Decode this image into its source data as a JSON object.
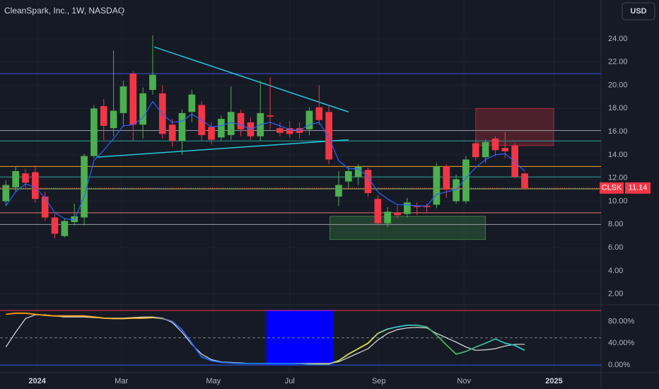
{
  "chart_data": {
    "type": "candlestick",
    "title": "CleanSpark, Inc., 1W, NASDAQ",
    "currency": "USD",
    "symbol": "CLSK",
    "last_price": 11.14,
    "up_color": "#4caf50",
    "down_color": "#f23645",
    "x": [
      0,
      1,
      2,
      3,
      4,
      5,
      6,
      7,
      8,
      9,
      10,
      11,
      12,
      13,
      14,
      15,
      16,
      17,
      18,
      19,
      20,
      21,
      22,
      23,
      24,
      25,
      26,
      27,
      28,
      29,
      30,
      31,
      32,
      33,
      34,
      35,
      36,
      37,
      38,
      39,
      40,
      41,
      42,
      43,
      44,
      45,
      46,
      47,
      48,
      49,
      50,
      51,
      52,
      53
    ],
    "open": [
      10.0,
      11.2,
      12.4,
      12.5,
      10.4,
      8.6,
      7.0,
      8.2,
      8.6,
      13.9,
      18.2,
      16.3,
      17.6,
      21.0,
      16.6,
      19.6,
      19.3,
      16.6,
      15.2,
      17.7,
      18.3,
      16.4,
      15.5,
      15.7,
      17.6,
      16.8,
      15.6,
      17.4,
      16.3,
      16.3,
      16.3,
      16.2,
      18.1,
      17.7,
      10.4,
      11.7,
      12.1,
      12.7,
      10.2,
      8.1,
      9.0,
      8.9,
      9.6,
      9.6,
      9.7,
      13.0,
      10.0,
      10.0,
      15.0,
      13.8,
      15.4,
      14.6,
      14.8,
      12.4
    ],
    "high": [
      11.8,
      13.0,
      12.8,
      13.1,
      10.8,
      8.9,
      8.5,
      9.8,
      14.1,
      18.3,
      18.8,
      23.0,
      20.4,
      21.2,
      19.8,
      24.3,
      20.0,
      17.1,
      17.9,
      19.6,
      18.6,
      16.8,
      17.4,
      19.9,
      17.9,
      17.2,
      20.4,
      20.7,
      16.8,
      16.9,
      16.8,
      18.1,
      20.0,
      18.3,
      12.6,
      13.0,
      13.2,
      12.9,
      10.5,
      9.5,
      9.6,
      10.3,
      9.9,
      9.8,
      13.3,
      13.2,
      12.3,
      13.9,
      15.3,
      15.3,
      15.6,
      16.0,
      15.0,
      12.5
    ],
    "low": [
      9.6,
      10.8,
      11.2,
      9.9,
      8.3,
      6.8,
      6.9,
      7.9,
      7.9,
      13.7,
      15.3,
      15.6,
      16.4,
      15.2,
      15.4,
      19.2,
      15.4,
      14.7,
      14.0,
      16.8,
      15.2,
      14.9,
      15.2,
      15.3,
      15.6,
      15.3,
      15.2,
      16.2,
      15.6,
      15.5,
      15.4,
      15.7,
      16.6,
      13.2,
      9.6,
      11.1,
      11.4,
      10.4,
      7.9,
      7.8,
      8.5,
      8.6,
      8.8,
      9.0,
      9.4,
      10.3,
      9.8,
      9.8,
      13.5,
      13.3,
      13.9,
      13.7,
      12.0,
      11.0
    ],
    "close": [
      11.4,
      12.6,
      11.6,
      10.2,
      8.6,
      7.2,
      8.3,
      8.7,
      13.9,
      18.0,
      16.5,
      17.8,
      19.9,
      16.6,
      19.3,
      20.9,
      15.8,
      15.2,
      17.6,
      19.2,
      15.7,
      15.3,
      17.1,
      17.7,
      16.2,
      15.6,
      17.6,
      17.3,
      15.9,
      15.8,
      15.9,
      17.8,
      17.0,
      13.6,
      11.4,
      12.6,
      13.0,
      10.7,
      8.1,
      9.1,
      8.8,
      9.9,
      9.5,
      9.5,
      13.0,
      11.0,
      11.9,
      13.6,
      13.8,
      15.1,
      14.4,
      14.3,
      12.1,
      11.14
    ],
    "ma": {
      "color": "#2962ff",
      "values": [
        9.6,
        10.8,
        11.5,
        11.2,
        10.3,
        9.0,
        8.5,
        8.4,
        10.4,
        13.5,
        14.4,
        15.4,
        16.5,
        16.6,
        17.2,
        18.6,
        17.5,
        16.8,
        16.9,
        17.5,
        17.0,
        16.4,
        16.5,
        16.8,
        16.6,
        16.2,
        16.6,
        16.8,
        16.5,
        16.2,
        16.1,
        16.6,
        16.8,
        15.5,
        13.5,
        12.8,
        12.8,
        12.1,
        10.8,
        10.2,
        9.7,
        9.7,
        9.6,
        9.6,
        10.6,
        10.8,
        11.0,
        12.0,
        12.9,
        13.6,
        14.0,
        14.1,
        13.4,
        12.6
      ]
    },
    "xlim": [
      -0.6,
      60.8
    ],
    "xticks": [
      {
        "value": 3.2,
        "label": "2024"
      },
      {
        "value": 11.8,
        "label": "Mar"
      },
      {
        "value": 21.2,
        "label": "May"
      },
      {
        "value": 29.0,
        "label": "Jul"
      },
      {
        "value": 38.1,
        "label": "Sep"
      },
      {
        "value": 46.8,
        "label": "Nov"
      },
      {
        "value": 56.0,
        "label": "2025"
      }
    ],
    "ylim": [
      1.13,
      27.35
    ],
    "yticks": [
      {
        "value": 2,
        "label": "2.00"
      },
      {
        "value": 4,
        "label": "4.00"
      },
      {
        "value": 6,
        "label": "6.00"
      },
      {
        "value": 8,
        "label": "8.00"
      },
      {
        "value": 10,
        "label": "10.00"
      },
      {
        "value": 12,
        "label": "12.00"
      },
      {
        "value": 14,
        "label": "14.00"
      },
      {
        "value": 16,
        "label": "16.00"
      },
      {
        "value": 18,
        "label": "18.00"
      },
      {
        "value": 20,
        "label": "20.00"
      },
      {
        "value": 22,
        "label": "22.00"
      },
      {
        "value": 24,
        "label": "24.00"
      }
    ],
    "hlines": [
      {
        "value": 21.0,
        "color": "#3f51d9"
      },
      {
        "value": 16.1,
        "color": "#9598a1"
      },
      {
        "value": 15.2,
        "color": "#26a69a"
      },
      {
        "value": 13.0,
        "color": "#f5a623"
      },
      {
        "value": 12.1,
        "color": "#26a69a"
      },
      {
        "value": 11.07,
        "color": "#a5c25c"
      },
      {
        "value": 9.0,
        "color": "#e57373"
      },
      {
        "value": 8.0,
        "color": "#9598a1"
      }
    ],
    "zones": [
      {
        "x": [
          48.0,
          55.96
        ],
        "y": [
          14.8,
          18.0
        ],
        "color": "#f23645"
      },
      {
        "x": [
          33.1,
          49.0
        ],
        "y": [
          6.7,
          8.7
        ],
        "color": "#4caf50"
      }
    ],
    "trendlines": [
      {
        "x": [
          15.16,
          35.0
        ],
        "y": [
          23.3,
          17.7
        ],
        "color": "#26c6da"
      },
      {
        "x": [
          9.24,
          35.0
        ],
        "y": [
          13.8,
          15.3
        ],
        "color": "#26c6da"
      }
    ],
    "oscillator": {
      "ylim": [
        -14,
        109
      ],
      "yticks": [
        {
          "value": 0,
          "label": "0.00%"
        },
        {
          "value": 40,
          "label": "40.00%"
        },
        {
          "value": 80,
          "label": "80.00%"
        }
      ],
      "bands": [
        {
          "value": 100,
          "color": "#f23645"
        },
        {
          "value": 50,
          "color": "#787b86"
        },
        {
          "value": 0,
          "color": "#2962ff"
        }
      ],
      "highlight_x": [
        26.6,
        33.5
      ],
      "k": [
        93,
        95,
        95,
        93,
        91,
        90,
        90,
        90,
        90,
        88,
        86,
        85,
        85,
        86,
        86,
        87,
        85,
        80,
        65,
        40,
        15,
        8,
        5,
        4,
        3,
        3,
        3,
        3,
        3,
        3,
        3,
        2,
        2,
        2,
        8,
        20,
        30,
        40,
        58,
        66,
        70,
        73,
        73,
        70,
        55,
        37,
        20,
        25,
        33,
        40,
        48,
        40,
        36,
        27
      ],
      "d": [
        33,
        60,
        85,
        92,
        92,
        90,
        88,
        88,
        88,
        87,
        86,
        86,
        86,
        87,
        88,
        88,
        86,
        78,
        60,
        38,
        20,
        10,
        6,
        5,
        4,
        3,
        3,
        3,
        3,
        3,
        3,
        3,
        3,
        3,
        6,
        14,
        22,
        30,
        46,
        58,
        65,
        68,
        69,
        68,
        58,
        50,
        42,
        33,
        27,
        28,
        30,
        35,
        38,
        38
      ]
    }
  }
}
